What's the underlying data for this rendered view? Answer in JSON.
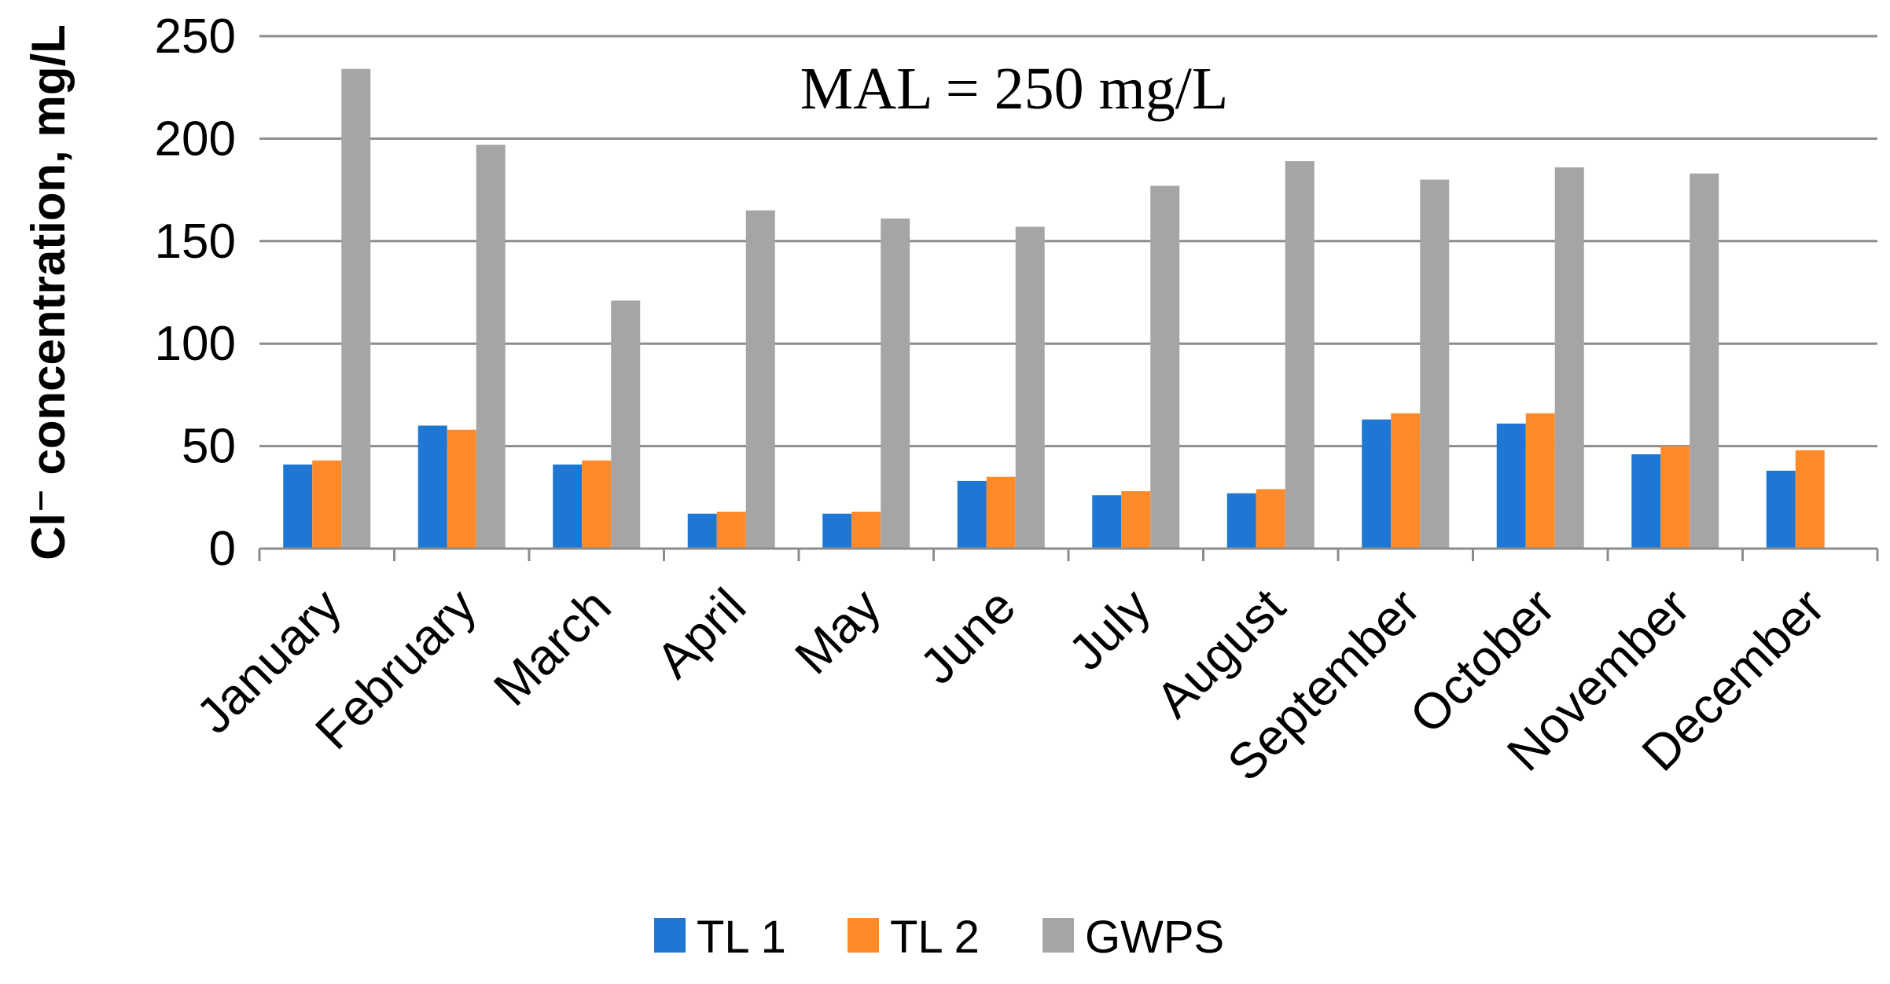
{
  "chart_data": {
    "type": "bar",
    "title": "",
    "xlabel": "",
    "ylabel": "Cl⁻ concentration, mg/L",
    "ylim": [
      0,
      250
    ],
    "yticks": [
      "0",
      "50",
      "100",
      "150",
      "200",
      "250"
    ],
    "grid": true,
    "annotation": "MAL = 250 mg/L",
    "legend_position": "bottom",
    "categories": [
      "January",
      "February",
      "March",
      "April",
      "May",
      "June",
      "July",
      "August",
      "September",
      "October",
      "November",
      "December"
    ],
    "series": [
      {
        "name": "TL 1",
        "color": "#1F77D4",
        "values": [
          41,
          60,
          41,
          17,
          17,
          33,
          26,
          27,
          63,
          61,
          46,
          38
        ]
      },
      {
        "name": "TL 2",
        "color": "#FF8A2A",
        "values": [
          43,
          58,
          43,
          18,
          18,
          35,
          28,
          29,
          66,
          66,
          50,
          48
        ]
      },
      {
        "name": "GWPS",
        "color": "#A5A5A5",
        "values": [
          234,
          197,
          121,
          165,
          161,
          157,
          177,
          189,
          180,
          186,
          183,
          null
        ]
      }
    ]
  }
}
